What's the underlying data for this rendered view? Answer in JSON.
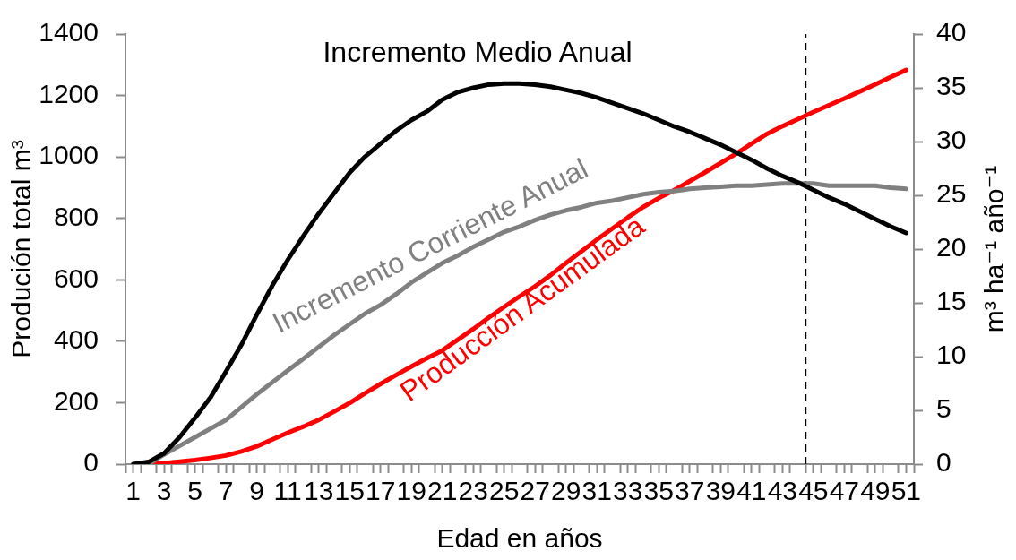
{
  "chart_data": {
    "type": "line",
    "xlabel": "Edad en años",
    "ylabel": "Produción total m³",
    "y2label": "m³ ha⁻¹ año⁻¹",
    "x": [
      1,
      2,
      3,
      4,
      5,
      6,
      7,
      8,
      9,
      10,
      11,
      12,
      13,
      14,
      15,
      16,
      17,
      18,
      19,
      20,
      21,
      22,
      23,
      24,
      25,
      26,
      27,
      28,
      29,
      30,
      31,
      32,
      33,
      34,
      35,
      36,
      37,
      38,
      39,
      40,
      41,
      42,
      43,
      44,
      45,
      46,
      47,
      48,
      49,
      50,
      51
    ],
    "xlim": [
      0.5,
      51.5
    ],
    "xticks": [
      {
        "value": 0.5,
        "label": null
      },
      1,
      {
        "value": 1.5,
        "label": null
      },
      {
        "value": 2.5,
        "label": null
      },
      3,
      {
        "value": 3.5,
        "label": null
      },
      {
        "value": 4.5,
        "label": null
      },
      5,
      {
        "value": 5.5,
        "label": null
      },
      {
        "value": 6.5,
        "label": null
      },
      7,
      {
        "value": 7.5,
        "label": null
      },
      {
        "value": 8.5,
        "label": null
      },
      9,
      {
        "value": 9.5,
        "label": null
      },
      {
        "value": 10.5,
        "label": null
      },
      11,
      {
        "value": 11.5,
        "label": null
      },
      {
        "value": 12.5,
        "label": null
      },
      13,
      {
        "value": 13.5,
        "label": null
      },
      {
        "value": 14.5,
        "label": null
      },
      15,
      {
        "value": 15.5,
        "label": null
      },
      {
        "value": 16.5,
        "label": null
      },
      17,
      {
        "value": 17.5,
        "label": null
      },
      {
        "value": 18.5,
        "label": null
      },
      19,
      {
        "value": 19.5,
        "label": null
      },
      {
        "value": 20.5,
        "label": null
      },
      21,
      {
        "value": 21.5,
        "label": null
      },
      {
        "value": 22.5,
        "label": null
      },
      23,
      {
        "value": 23.5,
        "label": null
      },
      {
        "value": 24.5,
        "label": null
      },
      25,
      {
        "value": 25.5,
        "label": null
      },
      {
        "value": 26.5,
        "label": null
      },
      27,
      {
        "value": 27.5,
        "label": null
      },
      {
        "value": 28.5,
        "label": null
      },
      29,
      {
        "value": 29.5,
        "label": null
      },
      {
        "value": 30.5,
        "label": null
      },
      31,
      {
        "value": 31.5,
        "label": null
      },
      {
        "value": 32.5,
        "label": null
      },
      33,
      {
        "value": 33.5,
        "label": null
      },
      {
        "value": 34.5,
        "label": null
      },
      35,
      {
        "value": 35.5,
        "label": null
      },
      {
        "value": 36.5,
        "label": null
      },
      37,
      {
        "value": 37.5,
        "label": null
      },
      {
        "value": 38.5,
        "label": null
      },
      39,
      {
        "value": 39.5,
        "label": null
      },
      {
        "value": 40.5,
        "label": null
      },
      41,
      {
        "value": 41.5,
        "label": null
      },
      {
        "value": 42.5,
        "label": null
      },
      43,
      {
        "value": 43.5,
        "label": null
      },
      {
        "value": 44.5,
        "label": null
      },
      45,
      {
        "value": 45.5,
        "label": null
      },
      {
        "value": 46.5,
        "label": null
      },
      47,
      {
        "value": 47.5,
        "label": null
      },
      {
        "value": 48.5,
        "label": null
      },
      49,
      {
        "value": 49.5,
        "label": null
      },
      {
        "value": 50.5,
        "label": null
      },
      51,
      {
        "value": 51.5,
        "label": null
      }
    ],
    "ylim": [
      0,
      1400
    ],
    "yticks": [
      0,
      200,
      400,
      600,
      800,
      1000,
      1200,
      1400
    ],
    "y2lim": [
      0,
      40
    ],
    "y2ticks": [
      0,
      5,
      10,
      15,
      20,
      25,
      30,
      35,
      40
    ],
    "grid": false,
    "legend": false,
    "marker": "none",
    "ref_lines": [
      {
        "axis": "x",
        "value": 44.5,
        "color": "#000000",
        "line_style": "dashed"
      }
    ],
    "series": [
      {
        "name": "Incremento Medio Anual",
        "color": "#000000",
        "axis": "y2",
        "values": [
          0,
          0.2,
          1.0,
          2.5,
          4.3,
          6.2,
          8.6,
          11.1,
          13.9,
          16.6,
          19.0,
          21.2,
          23.3,
          25.2,
          27.1,
          28.6,
          29.8,
          31.0,
          32.0,
          32.8,
          33.9,
          34.6,
          35.0,
          35.3,
          35.4,
          35.4,
          35.3,
          35.1,
          34.8,
          34.5,
          34.1,
          33.6,
          33.1,
          32.6,
          32.0,
          31.4,
          30.9,
          30.3,
          29.7,
          29.0,
          28.3,
          27.5,
          26.8,
          26.2,
          25.5,
          24.8,
          24.2,
          23.5,
          22.8,
          22.1,
          21.5
        ]
      },
      {
        "name": "Incremento Corriente Anual",
        "color": "#808080",
        "axis": "y2",
        "values": [
          null,
          0,
          0.9,
          1.7,
          2.5,
          3.3,
          4.1,
          5.3,
          6.5,
          7.6,
          8.7,
          9.8,
          10.9,
          12.0,
          13.0,
          14.0,
          14.8,
          15.8,
          16.9,
          17.8,
          18.7,
          19.4,
          20.2,
          20.9,
          21.6,
          22.1,
          22.7,
          23.2,
          23.6,
          23.9,
          24.3,
          24.5,
          24.8,
          25.1,
          25.3,
          25.4,
          25.6,
          25.7,
          25.8,
          25.9,
          25.9,
          26.0,
          26.1,
          26.1,
          26.1,
          25.9,
          25.9,
          25.9,
          25.9,
          25.7,
          25.6
        ]
      },
      {
        "name": "Producción Acumulada",
        "color": "#ff0000",
        "values": [
          null,
          0,
          3,
          8,
          13,
          20,
          28,
          41,
          58,
          80,
          102,
          122,
          144,
          171,
          199,
          231,
          261,
          290,
          318,
          345,
          370,
          405,
          440,
          477,
          512,
          546,
          579,
          615,
          655,
          693,
          731,
          767,
          803,
          837,
          866,
          892,
          921,
          950,
          980,
          1010,
          1043,
          1075,
          1100,
          1123,
          1146,
          1168,
          1190,
          1213,
          1236,
          1260,
          1283
        ]
      }
    ]
  }
}
